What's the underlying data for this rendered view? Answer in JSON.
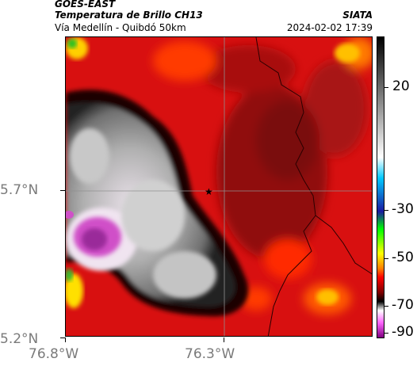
{
  "header": {
    "line1": "GOES-EAST",
    "line2": "Temperatura de Brillo CH13",
    "line3": "Vía Medellín - Quibdó 50km",
    "right_line2": "SIATA",
    "right_line3": "2024-02-02 17:39"
  },
  "axes": {
    "y_ticks": [
      {
        "label": "5.7°N",
        "value": 5.7
      },
      {
        "label": "5.2°N",
        "value": 5.2
      }
    ],
    "x_ticks": [
      {
        "label": "76.8°W",
        "value": -76.8
      },
      {
        "label": "76.3°W",
        "value": -76.3
      }
    ]
  },
  "colorbar": {
    "ticks": [
      {
        "label": "20",
        "value": 20
      },
      {
        "label": "-30",
        "value": -30
      },
      {
        "label": "-50",
        "value": -50
      },
      {
        "label": "-70",
        "value": -70
      },
      {
        "label": "-90",
        "value": -90
      }
    ],
    "colors": [
      "#000000",
      "#ffffff",
      "#00c8ff",
      "#1a1aa0",
      "#00ff00",
      "#ffff00",
      "#ff8000",
      "#ff0000",
      "#800000",
      "#000000",
      "#ffffff",
      "#ff66ff",
      "#800080"
    ]
  },
  "legend_colors": {
    "warm": "#d01010",
    "cold_cloud": "#a8a8a8",
    "coldest": "#d040c0",
    "border": "#3a0000"
  }
}
